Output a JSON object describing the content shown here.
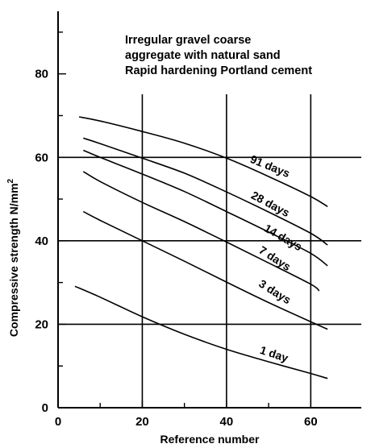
{
  "chart_data": {
    "type": "line",
    "title": "",
    "xlabel": "Reference number",
    "ylabel": "Compressive strength N/mm",
    "ylabel_sup": "2",
    "xlim": [
      0,
      72
    ],
    "ylim": [
      0,
      95
    ],
    "xticks": [
      0,
      20,
      40,
      60
    ],
    "xtick_labels": [
      "0",
      "20",
      "40",
      "60"
    ],
    "yticks": [
      0,
      20,
      40,
      60,
      80
    ],
    "ytick_labels": [
      "0",
      "20",
      "40",
      "60",
      "80"
    ],
    "grid": true,
    "grid_x": [
      20,
      40,
      60
    ],
    "grid_y": [
      20,
      40,
      60
    ],
    "annotation": [
      "Irregular gravel coarse",
      "aggregate with natural sand",
      "Rapid hardening Portland cement"
    ],
    "series": [
      {
        "name": "91 days",
        "x": [
          5,
          10,
          20,
          30,
          40,
          50,
          60,
          64
        ],
        "y": [
          69.7,
          68.7,
          66.2,
          63.4,
          59.8,
          55.4,
          50.6,
          48.2
        ]
      },
      {
        "name": "28 days",
        "x": [
          6,
          10,
          20,
          30,
          40,
          50,
          60,
          64
        ],
        "y": [
          64.6,
          63.3,
          59.8,
          56.2,
          51.7,
          46.9,
          41.8,
          39.0
        ]
      },
      {
        "name": "14 days",
        "x": [
          6,
          10,
          20,
          30,
          40,
          50,
          60,
          64
        ],
        "y": [
          61.7,
          60.0,
          56.0,
          51.8,
          47.0,
          42.1,
          37.0,
          34.0
        ]
      },
      {
        "name": "7 days",
        "x": [
          6,
          10,
          20,
          30,
          40,
          50,
          60,
          62
        ],
        "y": [
          56.6,
          54.2,
          49.2,
          44.6,
          39.7,
          34.7,
          29.6,
          28.0
        ]
      },
      {
        "name": "3 days",
        "x": [
          6,
          10,
          20,
          30,
          40,
          50,
          60,
          64
        ],
        "y": [
          47.0,
          44.9,
          40.0,
          35.1,
          30.1,
          25.2,
          20.6,
          18.8
        ]
      },
      {
        "name": "1 day",
        "x": [
          4,
          10,
          20,
          30,
          40,
          50,
          60,
          64
        ],
        "y": [
          29.1,
          26.5,
          21.8,
          17.6,
          14.0,
          11.0,
          8.2,
          7.0
        ]
      }
    ],
    "series_label_positions": [
      {
        "x": 50,
        "y": 57,
        "angle": 22
      },
      {
        "x": 50,
        "y": 48,
        "angle": 28
      },
      {
        "x": 53,
        "y": 40,
        "angle": 30
      },
      {
        "x": 51,
        "y": 35,
        "angle": 33
      },
      {
        "x": 51,
        "y": 27,
        "angle": 32
      },
      {
        "x": 51,
        "y": 12,
        "angle": 18
      }
    ]
  }
}
